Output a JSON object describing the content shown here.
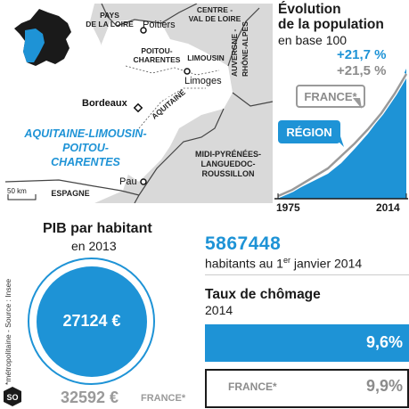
{
  "map": {
    "labels": {
      "pays_de_la_loire": [
        "PAYS",
        "DE LA LOIRE"
      ],
      "centre_val_de_loire": [
        "CENTRE -",
        "VAL DE LOIRE"
      ],
      "poitou_charentes": [
        "POITOU-",
        "CHARENTES"
      ],
      "limousin": "LIMOUSIN",
      "auvergne": [
        "AUVERGNE -",
        "RHÔNE-ALPES"
      ],
      "aquitaine": "AQUITAINE",
      "midi_pyrenees": [
        "MIDI-PYRÉNÉES-",
        "LANGUEDOC-",
        "ROUSSILLON"
      ],
      "espagne": "ESPAGNE"
    },
    "cities": {
      "poitiers": "Poitiers",
      "limoges": "Limoges",
      "bordeaux": "Bordeaux",
      "pau": "Pau"
    },
    "region_name": [
      "AQUITAINE-LIMOUSIN-",
      "POITOU-",
      "CHARENTES"
    ],
    "scale": "50 km"
  },
  "population": {
    "title": [
      "Évolution",
      "de la population"
    ],
    "subtitle": "en base 100",
    "region_value": "+21,7 %",
    "france_value": "+21,5 %",
    "france_label": "FRANCE*",
    "region_label": "RÉGION",
    "x_start": "1975",
    "x_end": "2014"
  },
  "pib": {
    "title": "PIB par habitant",
    "subtitle": "en 2013",
    "region_value": "27124 €",
    "france_value": "32592 €",
    "france_label": "FRANCE*"
  },
  "habitants": {
    "value": "5867448",
    "label_pre": "habitants au 1",
    "label_sup": "er",
    "label_post": " janvier 2014"
  },
  "chomage": {
    "title": "Taux de chômage",
    "subtitle": "2014",
    "region_value": "9,6%",
    "france_label": "FRANCE*",
    "france_value": "9,9%"
  },
  "source": "*métropolitaine - Source : Insee",
  "logo": "SO",
  "colors": {
    "accent": "#1e93d6",
    "map_region": "#ffffff",
    "map_other": "#d9d9d9",
    "dark": "#1a1a1a"
  }
}
